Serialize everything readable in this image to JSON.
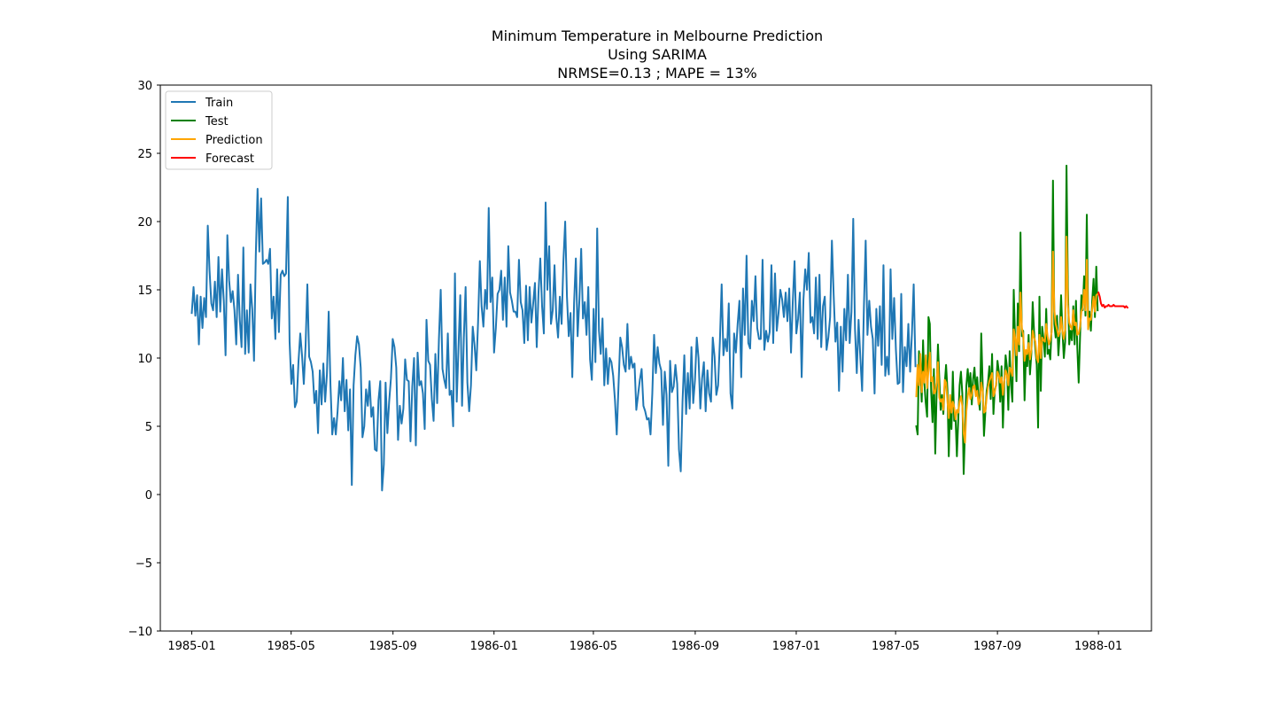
{
  "chart_data": {
    "type": "line",
    "title_lines": [
      "Minimum Temperature in Melbourne Prediction",
      "Using SARIMA",
      "NRMSE=0.13  ;  MAPE = 13%"
    ],
    "xlabel": "",
    "ylabel": "",
    "ylim": [
      -10,
      30
    ],
    "xlim": [
      "1984-11-24",
      "1988-03-05"
    ],
    "y_ticks": [
      -10,
      -5,
      0,
      5,
      10,
      15,
      20,
      25,
      30
    ],
    "y_tick_labels": [
      "−10",
      "−5",
      "0",
      "5",
      "10",
      "15",
      "20",
      "25",
      "30"
    ],
    "x_ticks": [
      "1985-01-01",
      "1985-05-01",
      "1985-09-01",
      "1986-01-01",
      "1986-05-01",
      "1986-09-01",
      "1987-01-01",
      "1987-05-01",
      "1987-09-01",
      "1988-01-01"
    ],
    "x_tick_labels": [
      "1985-01",
      "1985-05",
      "1985-09",
      "1986-01",
      "1986-05",
      "1986-09",
      "1987-01",
      "1987-05",
      "1987-09",
      "1988-01"
    ],
    "grid": false,
    "legend_position": "top-left",
    "series": [
      {
        "name": "Train",
        "color": "#1f77b4",
        "x_start": "1985-01-01",
        "x_end": "1987-05-25",
        "values": [
          13.3,
          15.2,
          13.1,
          14.6,
          11.0,
          14.5,
          12.2,
          14.4,
          13.0,
          19.7,
          16.4,
          14.0,
          13.5,
          15.6,
          13.0,
          17.4,
          13.4,
          16.5,
          14.2,
          10.2,
          19.0,
          15.7,
          14.1,
          14.9,
          13.5,
          11.0,
          16.1,
          12.8,
          10.8,
          18.1,
          10.3,
          13.5,
          10.4,
          15.4,
          13.6,
          9.8,
          17.5,
          22.4,
          17.8,
          21.7,
          16.9,
          17.0,
          17.2,
          16.9,
          18.0,
          12.9,
          14.5,
          11.4,
          16.5,
          11.9,
          16.1,
          16.4,
          16.0,
          16.2,
          21.8,
          11.2,
          8.1,
          9.5,
          6.4,
          6.8,
          9.7,
          11.8,
          10.2,
          8.1,
          10.9,
          15.4,
          10.1,
          9.7,
          9.0,
          6.7,
          7.6,
          4.5,
          9.1,
          6.6,
          9.6,
          6.8,
          8.8,
          13.4,
          8.0,
          4.4,
          5.6,
          4.4,
          6.1,
          8.3,
          6.9,
          10.0,
          6.1,
          8.4,
          4.7,
          7.7,
          0.7,
          8.0,
          10.2,
          11.6,
          11.0,
          9.3,
          4.2,
          5.0,
          7.7,
          6.5,
          8.3,
          5.7,
          6.4,
          3.3,
          3.2,
          6.9,
          8.3,
          0.3,
          2.2,
          8.2,
          4.5,
          6.8,
          8.5,
          11.4,
          10.8,
          9.3,
          4.0,
          6.5,
          5.2,
          6.3,
          9.9,
          8.4,
          8.3,
          3.9,
          7.9,
          10.0,
          3.6,
          10.4,
          8.0,
          8.3,
          7.4,
          4.8,
          12.8,
          9.8,
          9.5,
          7.0,
          5.4,
          10.3,
          6.7,
          11.4,
          15.0,
          9.2,
          8.4,
          7.8,
          11.8,
          7.3,
          7.6,
          5.0,
          16.2,
          6.8,
          10.8,
          14.6,
          6.5,
          11.5,
          15.2,
          8.2,
          6.1,
          8.0,
          12.3,
          11.0,
          9.1,
          12.6,
          17.1,
          13.8,
          12.3,
          15.0,
          13.6,
          21.0,
          14.1,
          15.9,
          10.4,
          12.2,
          14.7,
          15.0,
          16.4,
          12.8,
          15.9,
          12.3,
          18.2,
          14.8,
          14.2,
          13.4,
          13.4,
          13.0,
          17.2,
          14.1,
          13.5,
          11.1,
          15.3,
          11.3,
          15.2,
          12.6,
          14.0,
          15.5,
          10.8,
          14.8,
          17.3,
          13.8,
          11.8,
          21.4,
          15.0,
          18.2,
          12.5,
          13.5,
          16.8,
          13.0,
          11.5,
          14.5,
          12.5,
          17.1,
          20.0,
          14.5,
          11.6,
          13.3,
          8.6,
          14.0,
          17.3,
          11.6,
          14.3,
          18.0,
          12.9,
          14.1,
          11.7,
          15.2,
          9.9,
          8.4,
          13.6,
          9.7,
          19.5,
          12.0,
          10.3,
          12.9,
          8.0,
          10.7,
          8.1,
          10.0,
          9.7,
          8.7,
          6.9,
          4.4,
          8.0,
          11.5,
          10.8,
          9.5,
          9.0,
          12.5,
          9.2,
          10.1,
          9.3,
          9.6,
          6.2,
          7.3,
          8.4,
          9.2,
          6.5,
          6.1,
          5.5,
          5.6,
          4.4,
          7.4,
          11.7,
          8.9,
          10.8,
          9.6,
          9.1,
          5.1,
          9.0,
          7.3,
          2.1,
          9.8,
          7.5,
          7.9,
          9.5,
          8.1,
          3.3,
          1.7,
          6.8,
          10.2,
          5.9,
          8.9,
          6.3,
          10.8,
          6.7,
          8.4,
          11.5,
          10.0,
          6.3,
          8.5,
          9.7,
          6.1,
          9.1,
          7.4,
          6.8,
          11.5,
          10.1,
          7.3,
          8.0,
          11.2,
          15.4,
          10.2,
          11.4,
          10.5,
          14.0,
          7.4,
          6.3,
          11.8,
          10.4,
          12.5,
          14.2,
          8.6,
          15.1,
          11.7,
          17.5,
          11.1,
          10.7,
          14.2,
          12.7,
          16.0,
          12.2,
          11.4,
          11.4,
          17.2,
          10.6,
          12.0,
          11.2,
          11.9,
          16.8,
          11.1,
          16.2,
          12.0,
          13.3,
          15.0,
          14.3,
          13.0,
          14.8,
          12.7,
          15.1,
          10.4,
          14.1,
          17.1,
          11.8,
          12.9,
          14.8,
          8.6,
          14.3,
          16.5,
          15.0,
          17.7,
          12.6,
          13.0,
          11.8,
          15.9,
          11.4,
          16.1,
          10.8,
          13.8,
          14.5,
          10.6,
          11.5,
          13.0,
          18.6,
          14.6,
          11.2,
          12.6,
          7.6,
          12.3,
          9.0,
          13.6,
          11.3,
          16.1,
          11.1,
          13.4,
          20.2,
          12.1,
          8.9,
          12.8,
          10.0,
          7.6,
          13.7,
          18.6,
          11.7,
          14.2,
          12.3,
          11.4,
          7.4,
          13.6,
          10.9,
          13.8,
          9.5,
          16.8,
          8.7,
          10.1,
          8.8,
          16.5,
          11.4,
          14.4,
          10.6,
          8.1,
          8.2,
          14.7,
          7.5,
          10.8,
          9.4,
          12.5,
          9.0,
          11.8,
          15.4,
          9.4
        ]
      },
      {
        "name": "Test",
        "color": "#008000",
        "x_start": "1987-05-26",
        "x_end": "1987-12-31",
        "values": [
          5.0,
          4.4,
          10.5,
          9.0,
          6.8,
          11.3,
          8.1,
          6.7,
          5.7,
          13.0,
          12.5,
          7.5,
          5.3,
          9.2,
          3.0,
          7.4,
          11.0,
          8.5,
          6.2,
          7.3,
          5.9,
          8.1,
          9.5,
          7.7,
          2.8,
          6.5,
          4.8,
          9.0,
          5.4,
          5.7,
          2.8,
          5.5,
          8.0,
          9.0,
          7.4,
          1.5,
          4.7,
          8.0,
          9.2,
          7.8,
          8.9,
          6.6,
          8.5,
          9.3,
          7.5,
          8.6,
          7.0,
          6.2,
          11.8,
          8.2,
          4.3,
          6.0,
          7.6,
          8.2,
          9.4,
          7.0,
          10.3,
          5.9,
          7.7,
          8.0,
          9.8,
          9.0,
          6.8,
          9.4,
          4.9,
          8.1,
          10.2,
          9.3,
          6.2,
          10.5,
          8.0,
          6.8,
          15.0,
          11.4,
          8.3,
          14.0,
          10.5,
          19.2,
          11.6,
          12.0,
          6.9,
          10.2,
          9.4,
          11.7,
          8.8,
          10.3,
          14.1,
          12.0,
          10.6,
          9.5,
          4.9,
          14.5,
          7.6,
          12.3,
          11.4,
          10.1,
          13.6,
          10.3,
          10.6,
          9.9,
          12.2,
          23.0,
          12.5,
          11.5,
          13.1,
          10.2,
          11.8,
          14.6,
          12.0,
          10.0,
          11.2,
          24.1,
          15.2,
          11.0,
          12.0,
          11.3,
          13.8,
          11.0,
          14.2,
          10.7,
          8.2,
          11.5,
          14.6,
          13.5,
          16.0,
          13.1,
          20.5,
          12.8,
          13.4,
          12.0,
          14.2,
          15.8,
          13.0,
          16.7,
          13.5
        ]
      },
      {
        "name": "Prediction",
        "color": "#ffa500",
        "x_start": "1987-05-26",
        "x_end": "1987-12-31",
        "values": [
          7.2,
          9.5,
          8.0,
          10.3,
          7.5,
          9.0,
          8.2,
          10.2,
          7.8,
          9.1,
          10.4,
          8.3,
          8.6,
          7.4,
          7.5,
          8.2,
          9.7,
          7.1,
          6.8,
          7.0,
          6.2,
          8.4,
          8.2,
          6.9,
          5.6,
          7.3,
          6.0,
          6.8,
          6.4,
          5.5,
          6.2,
          6.0,
          6.8,
          7.2,
          6.5,
          4.5,
          3.8,
          6.1,
          7.2,
          7.8,
          7.0,
          7.3,
          7.9,
          8.0,
          7.2,
          7.6,
          6.6,
          6.9,
          8.2,
          7.6,
          6.0,
          6.1,
          7.1,
          7.9,
          8.3,
          8.6,
          8.9,
          7.2,
          7.5,
          8.1,
          9.0,
          8.7,
          8.2,
          8.6,
          7.3,
          8.3,
          9.1,
          8.8,
          8.0,
          9.3,
          9.1,
          8.7,
          12.1,
          11.5,
          10.2,
          12.3,
          11.0,
          14.8,
          12.2,
          11.7,
          9.8,
          10.6,
          10.3,
          11.1,
          9.9,
          10.6,
          12.0,
          11.5,
          11.2,
          10.0,
          9.7,
          11.7,
          10.0,
          11.5,
          11.3,
          11.2,
          12.5,
          11.6,
          11.0,
          11.3,
          11.9,
          17.8,
          13.5,
          12.5,
          12.1,
          11.6,
          11.9,
          13.0,
          12.0,
          11.4,
          12.1,
          18.9,
          13.9,
          12.6,
          12.3,
          12.1,
          13.5,
          12.4,
          12.6,
          11.7,
          11.8,
          12.3,
          13.4,
          13.7,
          15.0,
          13.5,
          17.2,
          12.1,
          12.9,
          12.8,
          13.6,
          14.5,
          13.4,
          14.6,
          14.7
        ]
      },
      {
        "name": "Forecast",
        "color": "#ff0000",
        "x_start": "1988-01-01",
        "x_end": "1988-02-05",
        "values": [
          14.8,
          14.5,
          14.0,
          13.8,
          13.9,
          13.7,
          13.8,
          13.8,
          13.9,
          13.8,
          13.8,
          13.8,
          13.9,
          13.8,
          13.8,
          13.8,
          13.8,
          13.8,
          13.8,
          13.8,
          13.8,
          13.7,
          13.8,
          13.7
        ]
      }
    ]
  }
}
